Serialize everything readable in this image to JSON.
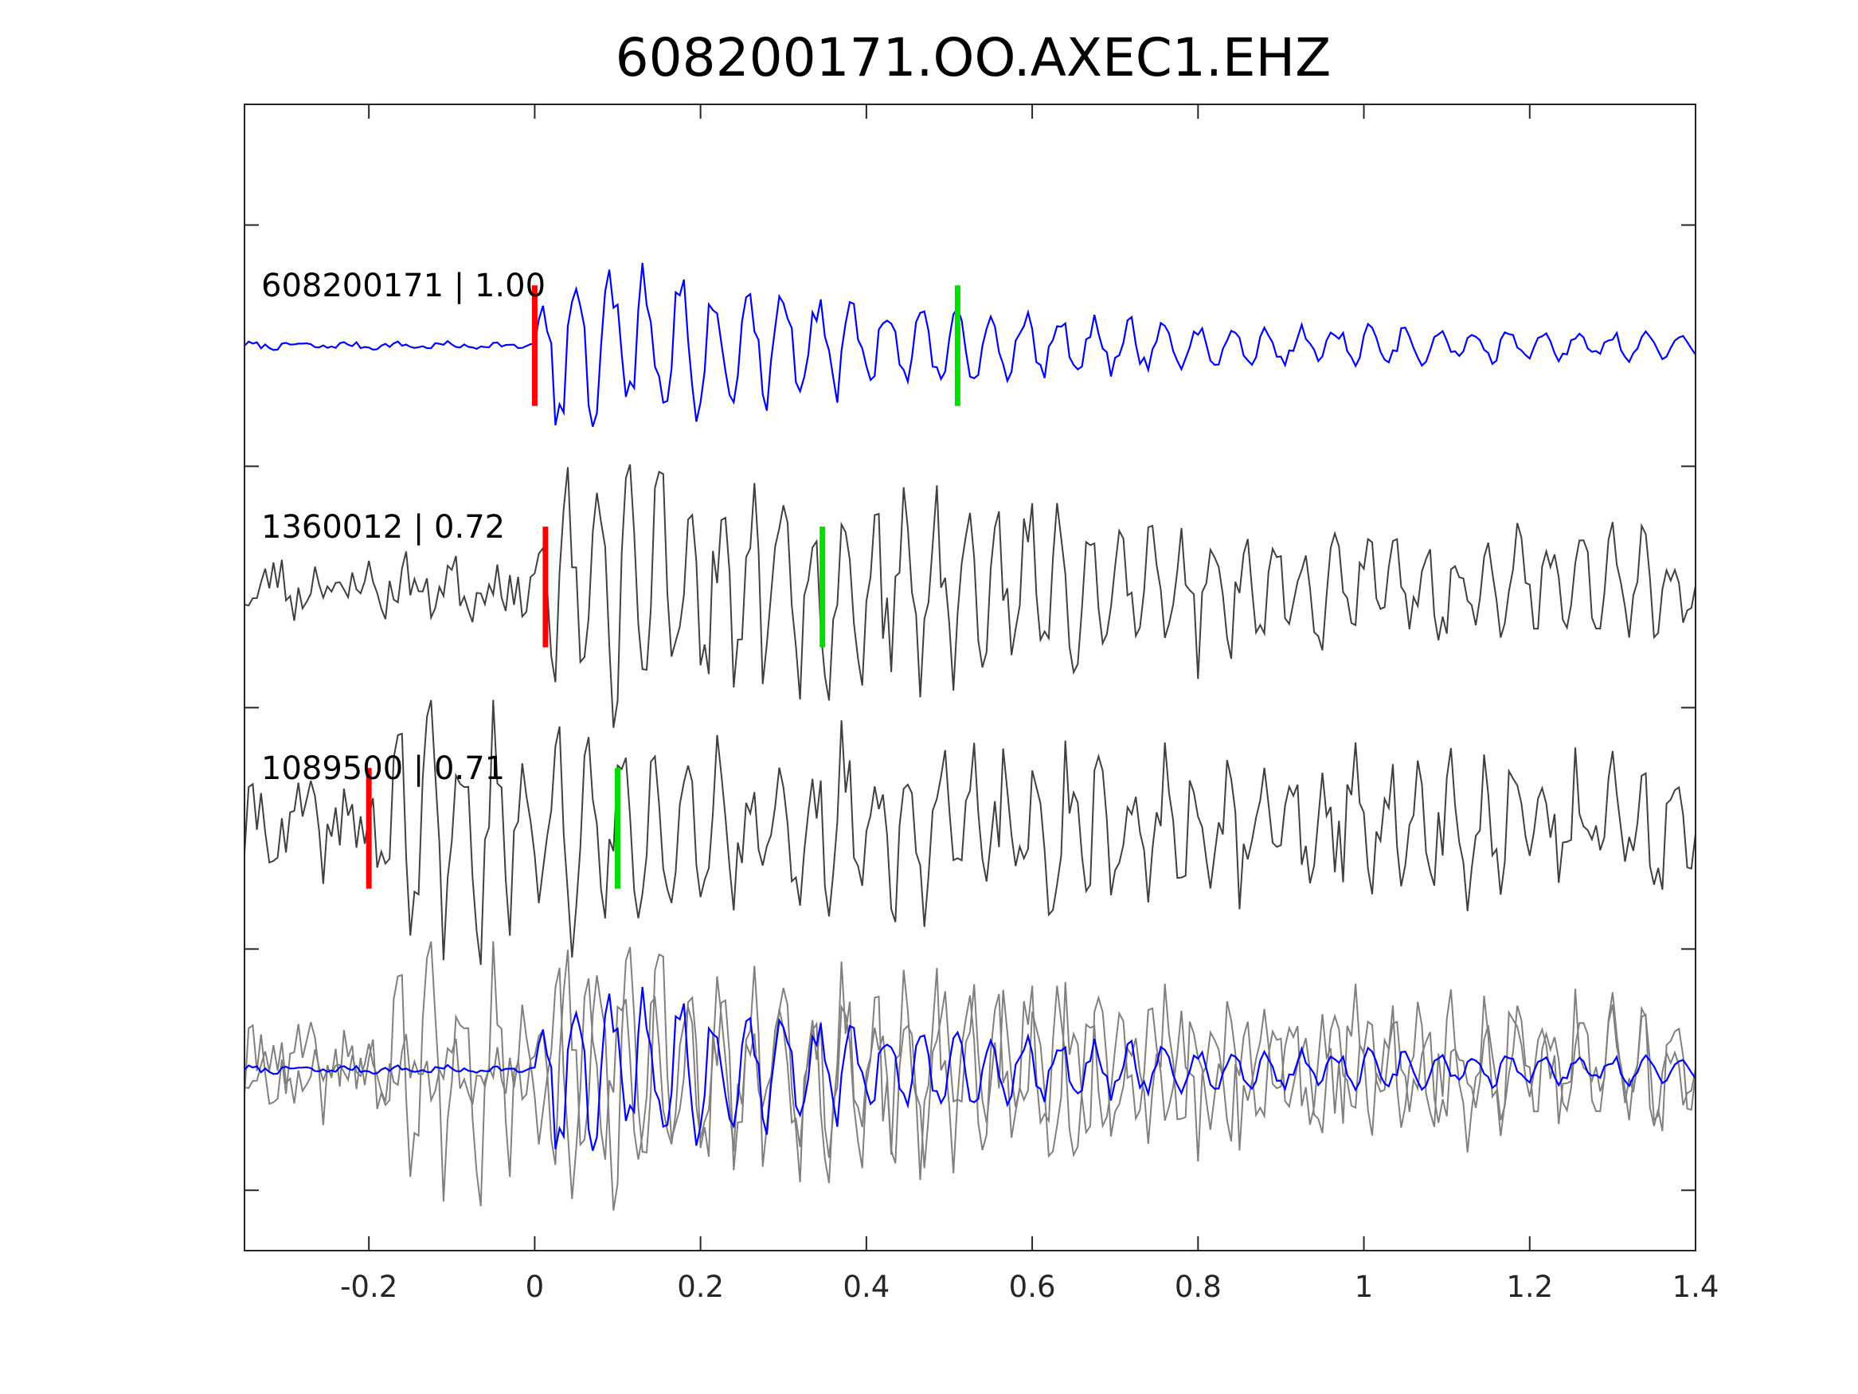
{
  "chart_data": {
    "type": "line",
    "title": "608200171.OO.AXEC1.EHZ",
    "xlabel": "",
    "ylabel": "",
    "xlim": [
      -0.35,
      1.4
    ],
    "xticks": [
      -0.2,
      0,
      0.2,
      0.4,
      0.6,
      0.8,
      1,
      1.2,
      1.4
    ],
    "xtick_labels": [
      "-0.2",
      "0",
      "0.2",
      "0.4",
      "0.6",
      "0.8",
      "1",
      "1.2",
      "1.4"
    ],
    "ylim": [
      0,
      4.75
    ],
    "yticks": [
      0.25,
      1.25,
      2.25,
      3.25,
      4.25
    ],
    "ytick_labels": [],
    "grid": false,
    "legend": "none",
    "colors": {
      "blue": "#0000ff",
      "dark_gray": "#404040",
      "light_gray": "#808080",
      "red": "#ff0000",
      "green": "#00dd00",
      "axis": "#262626"
    },
    "traces": [
      {
        "label": "608200171 | 1.00",
        "offset": 3.75,
        "color": "#0000ff",
        "sample_interval": 0.005,
        "noise_amp": 0.012,
        "onset": 0.0,
        "peak_amp": 0.42,
        "freq": 24,
        "decay": 2.2,
        "coda_amp": 0.04,
        "phase": 0.3,
        "seed": 7,
        "p_pick": 0.0,
        "s_pick": 0.51
      },
      {
        "label": "1360012 | 0.72",
        "offset": 2.75,
        "color": "#404040",
        "sample_interval": 0.005,
        "noise_amp": 0.1,
        "onset": 0.0,
        "peak_amp": 0.5,
        "freq": 27,
        "decay": 1.3,
        "coda_amp": 0.12,
        "phase": 1.1,
        "seed": 23,
        "p_pick": 0.013,
        "s_pick": 0.347
      },
      {
        "label": "1089500 | 0.71",
        "offset": 1.75,
        "color": "#404040",
        "sample_interval": 0.005,
        "noise_amp": 0.15,
        "onset": -0.2,
        "peak_amp": 0.45,
        "freq": 26,
        "decay": 1.0,
        "coda_amp": 0.11,
        "phase": 2.0,
        "seed": 41,
        "p_pick": -0.2,
        "s_pick": 0.1
      }
    ],
    "overlay": {
      "offset": 0.75,
      "note_source": "traces"
    }
  }
}
